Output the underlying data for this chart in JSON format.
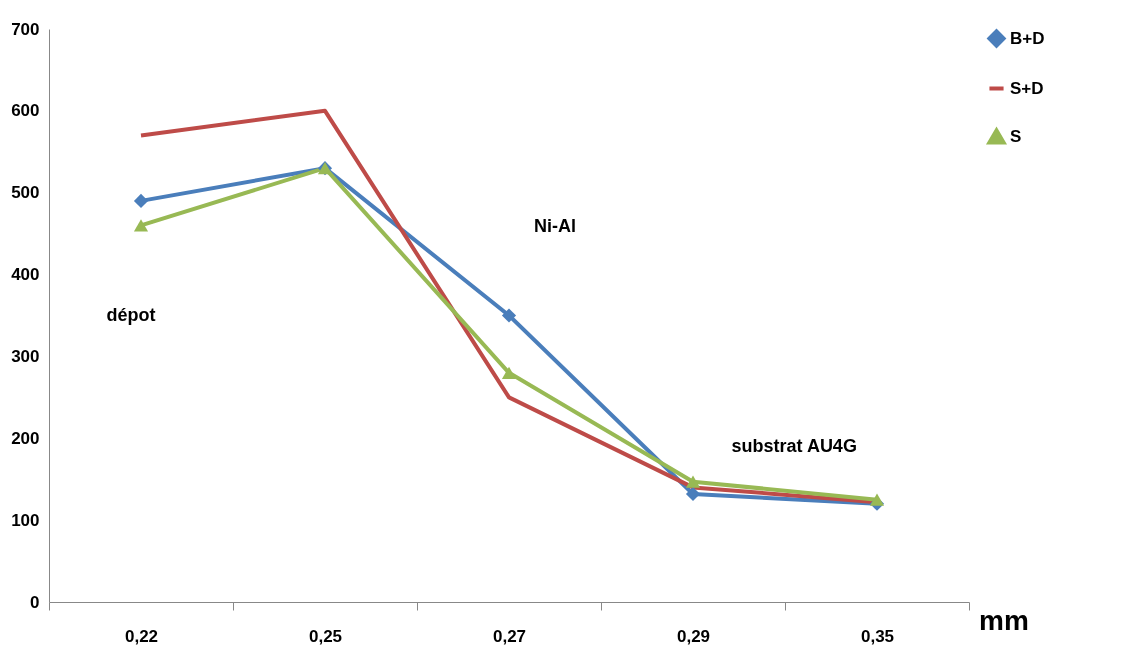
{
  "chart_data": {
    "type": "line",
    "xlabel": "mm",
    "categories": [
      "0,22",
      "0,25",
      "0,27",
      "0,29",
      "0,35"
    ],
    "series": [
      {
        "name": "B+D",
        "color": "#4a7ebb",
        "marker": "diamond",
        "values": [
          490,
          530,
          350,
          132,
          120
        ]
      },
      {
        "name": "S+D",
        "color": "#be4b48",
        "marker": "none",
        "values": [
          570,
          600,
          250,
          140,
          122
        ]
      },
      {
        "name": "S",
        "color": "#98b954",
        "marker": "triangle",
        "values": [
          460,
          530,
          280,
          147,
          125
        ]
      }
    ],
    "ylim": [
      0,
      700
    ],
    "yticks": [
      0,
      100,
      200,
      300,
      400,
      500,
      600,
      700
    ],
    "grid": false,
    "legend": "right",
    "annotations": [
      "dépot",
      "Ni-Al",
      "substrat AU4G"
    ]
  }
}
